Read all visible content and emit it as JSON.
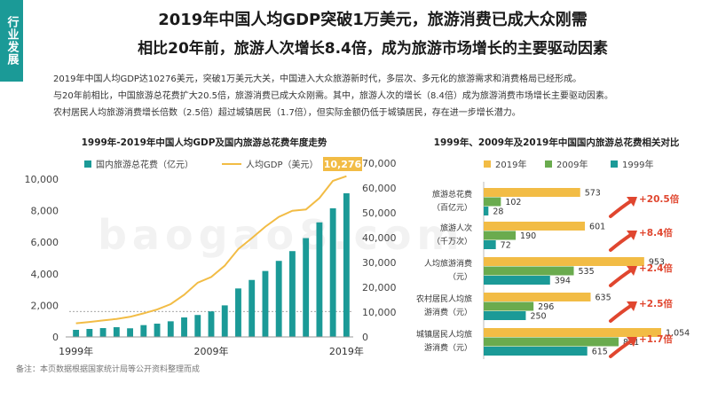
{
  "section_tag": "行业发展",
  "title_line1": "2019年中国人均GDP突破1万美元，旅游消费已成大众刚需",
  "title_line2": "相比20年前，旅游人次增长8.4倍，成为旅游市场增长的主要驱动因素",
  "intro": [
    "2019年中国人均GDP达10276美元，突破1万美元大关，中国进入大众旅游新时代，多层次、多元化的旅游需求和消费格局已经形成。",
    "与20年前相比，中国旅游总花费扩大20.5倍，旅游消费已成大众刚需。其中，旅游人次的增长（8.4倍）成为旅游消费市场增长主要驱动因素。",
    "农村居民人均旅游消费增长倍数（2.5倍）超过城镇居民（1.7倍），但实际金额仍低于城镇居民，存在进一步增长潜力。"
  ],
  "note": "备注：本页数据根据国家统计局等公开资料整理而成",
  "watermark": "baogao8.com",
  "colors": {
    "teal": "#1b9a97",
    "yellow": "#f2bc45",
    "green": "#6aab4e",
    "red": "#e0462f"
  },
  "chart_data": [
    {
      "type": "bar+line",
      "title": "1999年-2019年中国人均GDP及国内旅游总花费年度走势",
      "legend": {
        "bar": "国内旅游总花费（亿元）",
        "line": "人均GDP（美元）"
      },
      "years": [
        1999,
        2000,
        2001,
        2002,
        2003,
        2004,
        2005,
        2006,
        2007,
        2008,
        2009,
        2010,
        2011,
        2012,
        2013,
        2014,
        2015,
        2016,
        2017,
        2018,
        2019
      ],
      "x_tick_labels": [
        "1999年",
        "2009年",
        "2019年"
      ],
      "bar_series": {
        "name": "国内旅游总花费（亿元）",
        "values": [
          283,
          318,
          352,
          388,
          344,
          471,
          529,
          623,
          777,
          875,
          1018,
          1258,
          1932,
          2271,
          2628,
          3031,
          3420,
          3939,
          4566,
          5128,
          5725
        ]
      },
      "line_series": {
        "name": "人均GDP（美元）",
        "values": [
          873,
          959,
          1053,
          1148,
          1288,
          1508,
          1753,
          2099,
          2694,
          3468,
          3832,
          4550,
          5618,
          6317,
          7051,
          7678,
          8066,
          8147,
          8879,
          9977,
          10276
        ]
      },
      "left_axis": {
        "range": [
          0,
          10000
        ],
        "ticks": [
          "0",
          "2,000",
          "4,000",
          "6,000",
          "8,000",
          "10,000"
        ]
      },
      "right_axis": {
        "range": [
          0,
          70000
        ],
        "ticks": [
          "0",
          "10,000",
          "20,000",
          "30,000",
          "40,000",
          "50,000",
          "60,000",
          "70,000"
        ]
      },
      "highlight_label": "10,276"
    },
    {
      "type": "horizontal-bar",
      "title": "1999年、2009年及2019年中国国内旅游总花费相关对比",
      "series_names": [
        "2019年",
        "2009年",
        "1999年"
      ],
      "categories": [
        {
          "label1": "旅游总花费",
          "label2": "（百亿元）",
          "values": [
            573,
            102,
            28
          ],
          "value_labels": [
            "573",
            "102",
            "28"
          ],
          "growth": "+20.5倍"
        },
        {
          "label1": "旅游人次",
          "label2": "（千万次）",
          "values": [
            601,
            190,
            72
          ],
          "value_labels": [
            "601",
            "190",
            "72"
          ],
          "growth": "+8.4倍"
        },
        {
          "label1": "人均旅游消费",
          "label2": "（元）",
          "values": [
            953,
            535,
            394
          ],
          "value_labels": [
            "953",
            "535",
            "394"
          ],
          "growth": "+2.4倍"
        },
        {
          "label1": "农村居民人均旅",
          "label2": "游消费（元）",
          "values": [
            635,
            296,
            250
          ],
          "value_labels": [
            "635",
            "296",
            "250"
          ],
          "growth": "+2.5倍"
        },
        {
          "label1": "城镇居民人均旅",
          "label2": "游消费（元）",
          "values": [
            1054,
            801,
            615
          ],
          "value_labels": [
            "1,054",
            "801",
            "615"
          ],
          "growth": "+1.7倍"
        }
      ],
      "x_range": [
        0,
        1054
      ]
    }
  ]
}
